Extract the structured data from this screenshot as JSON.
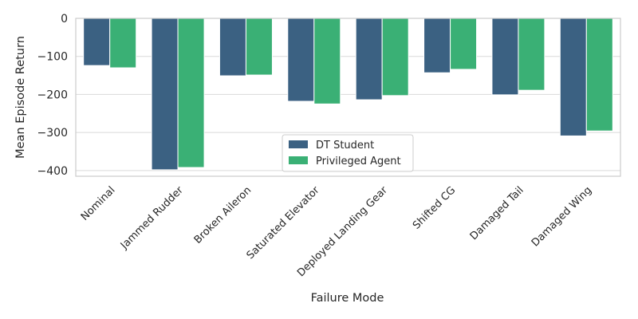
{
  "chart_data": {
    "type": "bar",
    "title": "",
    "xlabel": "Failure Mode",
    "ylabel": "Mean Episode Return",
    "ylim": [
      -415,
      0
    ],
    "yticks": [
      0,
      -100,
      -200,
      -300,
      -400
    ],
    "ytick_labels": [
      "0",
      "−100",
      "−200",
      "−300",
      "−400"
    ],
    "grid": "horizontal",
    "legend_position": "lower-center",
    "categories": [
      "Nominal",
      "Jammed Rudder",
      "Broken Aileron",
      "Saturated Elevator",
      "Deployed Landing Gear",
      "Shifted CG",
      "Damaged Tail",
      "Damaged Wing"
    ],
    "series": [
      {
        "name": "DT Student",
        "color": "#3b6182",
        "values": [
          -124,
          -398,
          -151,
          -218,
          -214,
          -143,
          -201,
          -309
        ]
      },
      {
        "name": "Privileged Agent",
        "color": "#3ab075",
        "values": [
          -130,
          -392,
          -149,
          -225,
          -203,
          -134,
          -189,
          -296
        ]
      }
    ]
  }
}
